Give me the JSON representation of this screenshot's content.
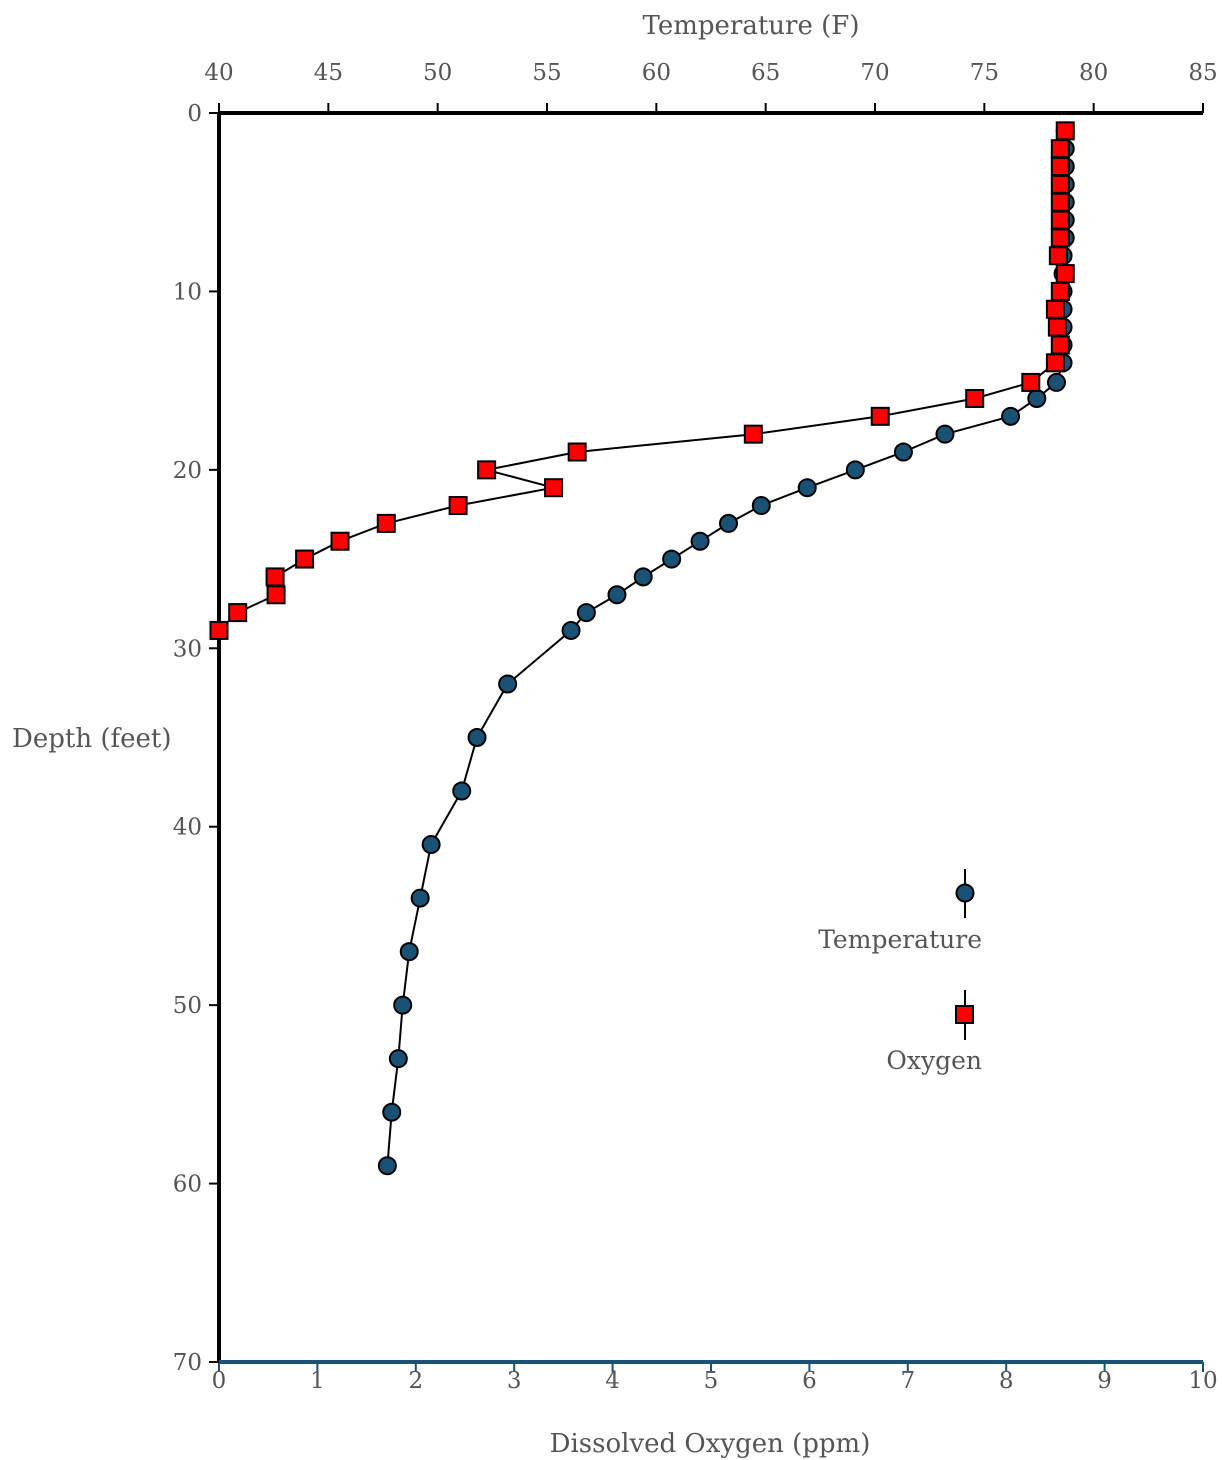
{
  "chart_data": {
    "type": "scatter",
    "x_top_label": "Temperature (F)",
    "x_bottom_label": "Dissolved Oxygen (ppm)",
    "ylabel": "Depth (feet)",
    "x_top_range": [
      40,
      85
    ],
    "x_top_ticks": [
      40,
      45,
      50,
      55,
      60,
      65,
      70,
      75,
      80,
      85
    ],
    "x_bottom_range": [
      0,
      10
    ],
    "x_bottom_ticks": [
      0,
      1,
      2,
      3,
      4,
      5,
      6,
      7,
      8,
      9,
      10
    ],
    "y_range": [
      0,
      70
    ],
    "y_inverted": true,
    "y_ticks": [
      0,
      10,
      20,
      30,
      40,
      50,
      60,
      70
    ],
    "legend_position": "lower-right",
    "colors": {
      "temperature_marker": "#1a5276",
      "oxygen_marker": "#ff0000",
      "bottom_axis": "#1a5276",
      "line": "#000000",
      "text": "#555555"
    },
    "series": [
      {
        "name": "Temperature",
        "axis": "top",
        "marker": "circle",
        "points": [
          {
            "x": 78.7,
            "depth": 1
          },
          {
            "x": 78.7,
            "depth": 2
          },
          {
            "x": 78.7,
            "depth": 3
          },
          {
            "x": 78.7,
            "depth": 4
          },
          {
            "x": 78.7,
            "depth": 5
          },
          {
            "x": 78.7,
            "depth": 6
          },
          {
            "x": 78.7,
            "depth": 7
          },
          {
            "x": 78.6,
            "depth": 8
          },
          {
            "x": 78.6,
            "depth": 9
          },
          {
            "x": 78.6,
            "depth": 10
          },
          {
            "x": 78.6,
            "depth": 11
          },
          {
            "x": 78.6,
            "depth": 12
          },
          {
            "x": 78.6,
            "depth": 13
          },
          {
            "x": 78.6,
            "depth": 14
          },
          {
            "x": 78.3,
            "depth": 15.1
          },
          {
            "x": 77.4,
            "depth": 16
          },
          {
            "x": 76.2,
            "depth": 17
          },
          {
            "x": 73.2,
            "depth": 18
          },
          {
            "x": 71.3,
            "depth": 19
          },
          {
            "x": 69.1,
            "depth": 20
          },
          {
            "x": 66.9,
            "depth": 21
          },
          {
            "x": 64.8,
            "depth": 22
          },
          {
            "x": 63.3,
            "depth": 23
          },
          {
            "x": 62.0,
            "depth": 24
          },
          {
            "x": 60.7,
            "depth": 25
          },
          {
            "x": 59.4,
            "depth": 26
          },
          {
            "x": 58.2,
            "depth": 27
          },
          {
            "x": 56.8,
            "depth": 28
          },
          {
            "x": 56.1,
            "depth": 29
          },
          {
            "x": 53.2,
            "depth": 32
          },
          {
            "x": 51.8,
            "depth": 35
          },
          {
            "x": 51.1,
            "depth": 38
          },
          {
            "x": 49.7,
            "depth": 41
          },
          {
            "x": 49.2,
            "depth": 44
          },
          {
            "x": 48.7,
            "depth": 47
          },
          {
            "x": 48.4,
            "depth": 50
          },
          {
            "x": 48.2,
            "depth": 53
          },
          {
            "x": 47.9,
            "depth": 56
          },
          {
            "x": 47.7,
            "depth": 59
          }
        ]
      },
      {
        "name": "Oxygen",
        "axis": "bottom",
        "marker": "square",
        "points": [
          {
            "x": 8.6,
            "depth": 1
          },
          {
            "x": 8.55,
            "depth": 2
          },
          {
            "x": 8.55,
            "depth": 3
          },
          {
            "x": 8.55,
            "depth": 4
          },
          {
            "x": 8.55,
            "depth": 5
          },
          {
            "x": 8.55,
            "depth": 6
          },
          {
            "x": 8.55,
            "depth": 7
          },
          {
            "x": 8.53,
            "depth": 8
          },
          {
            "x": 8.6,
            "depth": 9
          },
          {
            "x": 8.55,
            "depth": 10
          },
          {
            "x": 8.5,
            "depth": 11
          },
          {
            "x": 8.52,
            "depth": 12
          },
          {
            "x": 8.55,
            "depth": 13
          },
          {
            "x": 8.5,
            "depth": 14
          },
          {
            "x": 8.25,
            "depth": 15.1
          },
          {
            "x": 7.68,
            "depth": 16
          },
          {
            "x": 6.72,
            "depth": 17
          },
          {
            "x": 5.43,
            "depth": 18
          },
          {
            "x": 3.64,
            "depth": 19
          },
          {
            "x": 2.72,
            "depth": 20
          },
          {
            "x": 3.4,
            "depth": 21
          },
          {
            "x": 2.43,
            "depth": 22
          },
          {
            "x": 1.7,
            "depth": 23
          },
          {
            "x": 1.23,
            "depth": 24
          },
          {
            "x": 0.87,
            "depth": 25
          },
          {
            "x": 0.57,
            "depth": 26
          },
          {
            "x": 0.58,
            "depth": 27
          },
          {
            "x": 0.19,
            "depth": 28
          },
          {
            "x": 0.0,
            "depth": 29
          }
        ]
      }
    ]
  }
}
